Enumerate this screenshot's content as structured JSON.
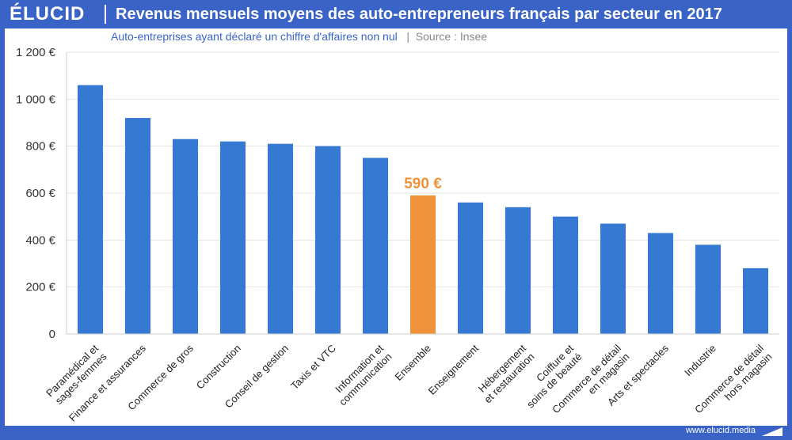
{
  "brand": {
    "logo": "ÉLUCID",
    "url": "www.elucid.media"
  },
  "header": {
    "title": "Revenus mensuels moyens des auto-entrepreneurs français par secteur en 2017"
  },
  "subheader": {
    "main": "Auto-entreprises ayant déclaré un chiffre d'affaires non nul",
    "divider": "|",
    "source": "Source : Insee"
  },
  "colors": {
    "bar": "#3579d2",
    "highlight": "#f0923a",
    "frame": "#3a63c8"
  },
  "chart_data": {
    "type": "bar",
    "categories": [
      [
        "Paramédical et",
        "sages-femmes"
      ],
      [
        "Finance et assurances"
      ],
      [
        "Commerce de gros"
      ],
      [
        "Construction"
      ],
      [
        "Conseil de gestion"
      ],
      [
        "Taxis et VTC"
      ],
      [
        "Information et",
        "communication"
      ],
      [
        "Ensemble"
      ],
      [
        "Enseignement"
      ],
      [
        "Hébergement",
        "et restauration"
      ],
      [
        "Coiffure et",
        "soins de beauté"
      ],
      [
        "Commerce de détail",
        "en magasin"
      ],
      [
        "Arts et spectacles"
      ],
      [
        "Industrie"
      ],
      [
        "Commerce de détail",
        "hors magasin"
      ]
    ],
    "values": [
      1060,
      920,
      830,
      820,
      810,
      800,
      750,
      590,
      560,
      540,
      500,
      470,
      430,
      380,
      280
    ],
    "highlight_index": 7,
    "highlight_label": "590 €",
    "yticks": [
      "0",
      "200 €",
      "400 €",
      "600 €",
      "800 €",
      "1 000 €",
      "1 200 €"
    ],
    "ylim": [
      0,
      1200
    ],
    "grid": true
  }
}
